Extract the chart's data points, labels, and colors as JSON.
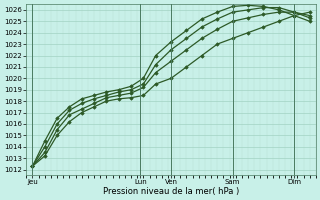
{
  "bg_color": "#c8f0e8",
  "grid_color": "#99ccbb",
  "line_color": "#2d5a27",
  "marker": "D",
  "marker_size": 1.8,
  "linewidth": 0.9,
  "xlabel": "Pression niveau de la mer( hPa )",
  "ylim": [
    1011.5,
    1026.5
  ],
  "ytick_min": 1012,
  "ytick_max": 1026,
  "xlim_min": 0,
  "xlim_max": 9.2,
  "xtick_labels": [
    "Jeu",
    "Lun",
    "Ven",
    "Sam",
    "Dim"
  ],
  "xtick_positions": [
    0.2,
    3.7,
    4.7,
    6.7,
    8.7
  ],
  "vline_positions": [
    0.2,
    3.7,
    4.7,
    6.7,
    8.7
  ],
  "series": [
    {
      "x": [
        0.2,
        0.6,
        1.0,
        1.4,
        1.8,
        2.2,
        2.6,
        3.0,
        3.4,
        3.8,
        4.2,
        4.7,
        5.2,
        5.7,
        6.2,
        6.7,
        7.2,
        7.7,
        8.2,
        8.7,
        9.2
      ],
      "y": [
        1012.3,
        1013.2,
        1015.0,
        1016.2,
        1017.0,
        1017.5,
        1018.0,
        1018.2,
        1018.3,
        1018.5,
        1019.5,
        1020.0,
        1021.0,
        1022.0,
        1023.0,
        1023.5,
        1024.0,
        1024.5,
        1025.0,
        1025.5,
        1025.8
      ]
    },
    {
      "x": [
        0.2,
        0.6,
        1.0,
        1.4,
        1.8,
        2.2,
        2.6,
        3.0,
        3.4,
        3.8,
        4.2,
        4.7,
        5.2,
        5.7,
        6.2,
        6.7,
        7.2,
        7.7,
        8.2,
        8.7,
        9.2
      ],
      "y": [
        1012.3,
        1013.5,
        1015.5,
        1016.8,
        1017.3,
        1017.8,
        1018.3,
        1018.5,
        1018.7,
        1019.2,
        1020.5,
        1021.5,
        1022.5,
        1023.5,
        1024.3,
        1025.0,
        1025.3,
        1025.6,
        1025.8,
        1025.8,
        1025.5
      ]
    },
    {
      "x": [
        0.2,
        0.6,
        1.0,
        1.4,
        1.8,
        2.2,
        2.6,
        3.0,
        3.4,
        3.8,
        4.2,
        4.7,
        5.2,
        5.7,
        6.2,
        6.7,
        7.2,
        7.7,
        8.2,
        8.7,
        9.2
      ],
      "y": [
        1012.3,
        1014.0,
        1016.0,
        1017.2,
        1017.8,
        1018.2,
        1018.5,
        1018.8,
        1019.0,
        1019.5,
        1021.2,
        1022.5,
        1023.5,
        1024.5,
        1025.2,
        1025.8,
        1026.0,
        1026.2,
        1026.2,
        1025.8,
        1025.3
      ]
    },
    {
      "x": [
        0.2,
        0.6,
        1.0,
        1.4,
        1.8,
        2.2,
        2.6,
        3.0,
        3.4,
        3.8,
        4.2,
        4.7,
        5.2,
        5.7,
        6.2,
        6.7,
        7.2,
        7.7,
        8.2,
        8.7,
        9.2
      ],
      "y": [
        1012.3,
        1014.5,
        1016.5,
        1017.5,
        1018.2,
        1018.5,
        1018.8,
        1019.0,
        1019.3,
        1020.0,
        1022.0,
        1023.2,
        1024.2,
        1025.2,
        1025.8,
        1026.3,
        1026.4,
        1026.3,
        1026.0,
        1025.5,
        1025.0
      ]
    }
  ],
  "tick_fontsize": 5.0,
  "xlabel_fontsize": 6.0,
  "grid_minor_color": "#b8e0d4",
  "vline_color": "#4a7a60",
  "vline_lw": 0.7
}
